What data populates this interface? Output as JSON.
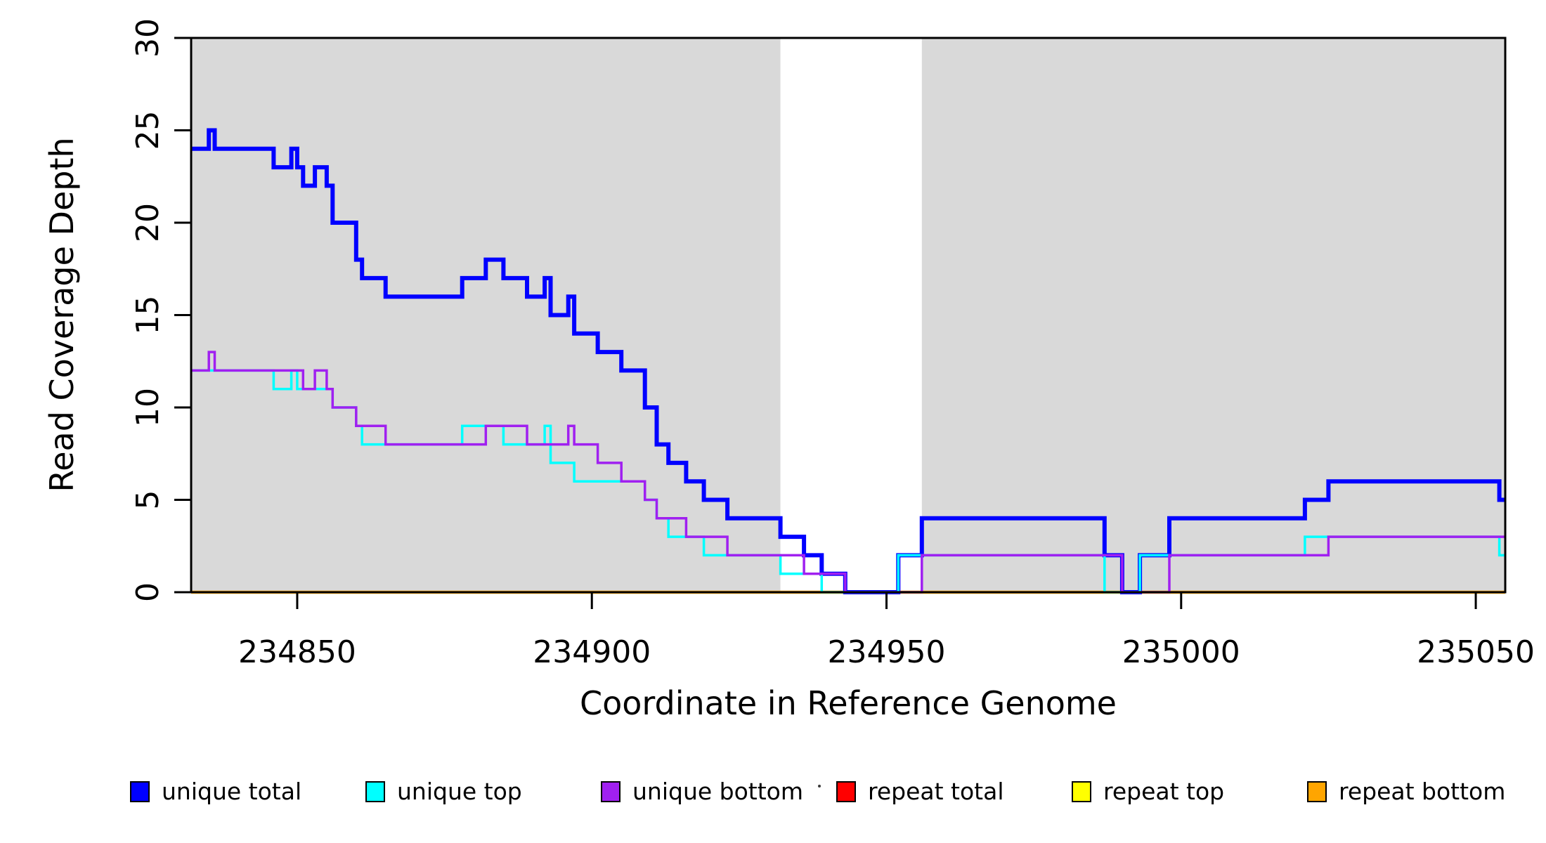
{
  "figure": {
    "kind": "R step plot",
    "background": "#FFFFFF",
    "panel_shade_color": "#D9D9D9",
    "axis_color": "#000000"
  },
  "x_axis": {
    "title": "Coordinate in Reference Genome",
    "tick_labels": [
      "234850",
      "234900",
      "234950",
      "235000",
      "235050"
    ],
    "tick_values": [
      234850,
      234900,
      234950,
      235000,
      235050
    ],
    "range": [
      234832,
      235055
    ]
  },
  "y_axis": {
    "title": "Read Coverage Depth",
    "tick_labels": [
      "0",
      "5",
      "10",
      "15",
      "20",
      "25",
      "30"
    ],
    "tick_values": [
      0,
      5,
      10,
      15,
      20,
      25,
      30
    ],
    "range": [
      0,
      30
    ]
  },
  "legend": {
    "items": [
      {
        "label": "unique total",
        "color": "#0000FF"
      },
      {
        "label": "unique top",
        "color": "#00FFFF"
      },
      {
        "label": "unique bottom",
        "color": "#A020F0"
      },
      {
        "label": "repeat total",
        "color": "#FF0000"
      },
      {
        "label": "repeat top",
        "color": "#FFFF00"
      },
      {
        "label": "repeat bottom",
        "color": "#FFA500"
      }
    ],
    "stray_dot": true
  },
  "chart_data": {
    "type": "line",
    "step": true,
    "title": "",
    "xlabel": "Coordinate in Reference Genome",
    "ylabel": "Read Coverage Depth",
    "xlim": [
      234832,
      235055
    ],
    "ylim": [
      0,
      30
    ],
    "grid": false,
    "legend_position": "bottom",
    "shaded_regions": [
      [
        234832,
        234932
      ],
      [
        234956,
        235055
      ]
    ],
    "white_gap": [
      234932,
      234956
    ],
    "series": [
      {
        "name": "repeat total",
        "color": "#FF0000",
        "line_width": 3,
        "steps": [
          [
            234832,
            0
          ]
        ]
      },
      {
        "name": "repeat top",
        "color": "#FFFF00",
        "line_width": 3,
        "steps": [
          [
            234832,
            0
          ]
        ]
      },
      {
        "name": "repeat bottom",
        "color": "#FFA500",
        "line_width": 4.5,
        "steps": [
          [
            234832,
            0
          ]
        ]
      },
      {
        "name": "unique total",
        "color": "#0000FF",
        "line_width": 6,
        "steps": [
          [
            234832,
            24
          ],
          [
            234835,
            25
          ],
          [
            234836,
            24
          ],
          [
            234846,
            23
          ],
          [
            234849,
            24
          ],
          [
            234850,
            23
          ],
          [
            234851,
            22
          ],
          [
            234853,
            23
          ],
          [
            234855,
            22
          ],
          [
            234856,
            20
          ],
          [
            234860,
            18
          ],
          [
            234861,
            17
          ],
          [
            234865,
            16
          ],
          [
            234878,
            17
          ],
          [
            234882,
            18
          ],
          [
            234885,
            17
          ],
          [
            234889,
            16
          ],
          [
            234892,
            17
          ],
          [
            234893,
            15
          ],
          [
            234896,
            16
          ],
          [
            234897,
            14
          ],
          [
            234901,
            13
          ],
          [
            234905,
            12
          ],
          [
            234909,
            10
          ],
          [
            234911,
            8
          ],
          [
            234913,
            7
          ],
          [
            234916,
            6
          ],
          [
            234919,
            5
          ],
          [
            234923,
            4
          ],
          [
            234932,
            3
          ],
          [
            234936,
            2
          ],
          [
            234939,
            1
          ],
          [
            234943,
            0
          ],
          [
            234952,
            2
          ],
          [
            234956,
            4
          ],
          [
            234987,
            2
          ],
          [
            234990,
            0
          ],
          [
            234993,
            2
          ],
          [
            234998,
            4
          ],
          [
            235021,
            5
          ],
          [
            235025,
            6
          ],
          [
            235054,
            5
          ]
        ]
      },
      {
        "name": "unique top",
        "color": "#00FFFF",
        "line_width": 3.5,
        "steps": [
          [
            234832,
            12
          ],
          [
            234846,
            11
          ],
          [
            234849,
            12
          ],
          [
            234850,
            11
          ],
          [
            234856,
            10
          ],
          [
            234860,
            9
          ],
          [
            234861,
            8
          ],
          [
            234878,
            9
          ],
          [
            234885,
            8
          ],
          [
            234892,
            9
          ],
          [
            234893,
            7
          ],
          [
            234897,
            6
          ],
          [
            234909,
            5
          ],
          [
            234911,
            4
          ],
          [
            234913,
            3
          ],
          [
            234919,
            2
          ],
          [
            234932,
            1
          ],
          [
            234939,
            0
          ],
          [
            234952,
            2
          ],
          [
            234987,
            0
          ],
          [
            234993,
            2
          ],
          [
            235021,
            3
          ],
          [
            235054,
            2
          ]
        ]
      },
      {
        "name": "unique bottom",
        "color": "#A020F0",
        "line_width": 3.5,
        "steps": [
          [
            234832,
            12
          ],
          [
            234835,
            13
          ],
          [
            234836,
            12
          ],
          [
            234851,
            11
          ],
          [
            234853,
            12
          ],
          [
            234855,
            11
          ],
          [
            234856,
            10
          ],
          [
            234860,
            9
          ],
          [
            234865,
            8
          ],
          [
            234882,
            9
          ],
          [
            234889,
            8
          ],
          [
            234896,
            9
          ],
          [
            234897,
            8
          ],
          [
            234901,
            7
          ],
          [
            234905,
            6
          ],
          [
            234909,
            5
          ],
          [
            234911,
            4
          ],
          [
            234916,
            3
          ],
          [
            234923,
            2
          ],
          [
            234936,
            1
          ],
          [
            234943,
            0
          ],
          [
            234956,
            2
          ],
          [
            234990,
            0
          ],
          [
            234998,
            2
          ],
          [
            235025,
            3
          ]
        ]
      }
    ]
  }
}
